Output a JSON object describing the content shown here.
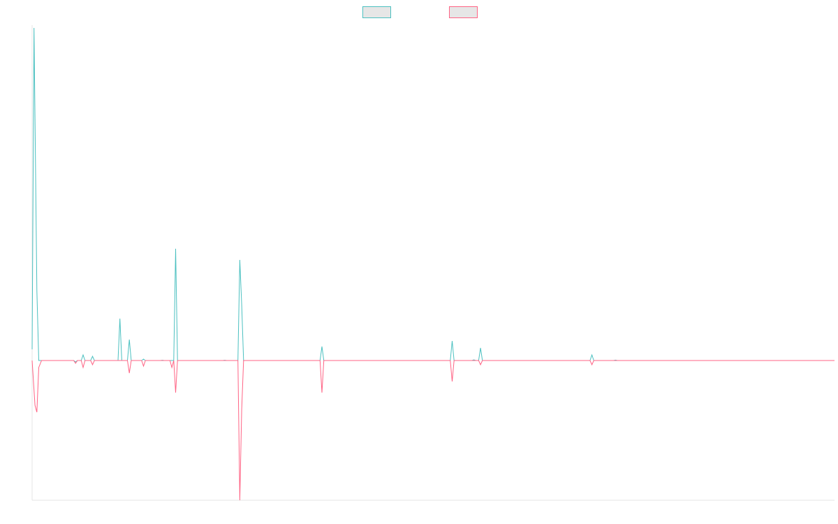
{
  "chart_data": {
    "type": "line",
    "title": "",
    "xlabel": "",
    "ylabel": "",
    "grid": false,
    "legend_position": "top",
    "x_range": [
      0,
      85
    ],
    "ylim": [
      -100,
      240
    ],
    "series": [
      {
        "name": "",
        "color": "#4bc0c0",
        "fill_color": "#e6e6e6",
        "points": [
          [
            0,
            8
          ],
          [
            0.2,
            238
          ],
          [
            0.5,
            50
          ],
          [
            0.7,
            0
          ],
          [
            1.5,
            0
          ],
          [
            4.4,
            0
          ],
          [
            4.6,
            -1
          ],
          [
            4.8,
            0
          ],
          [
            5.2,
            0
          ],
          [
            5.4,
            4
          ],
          [
            5.6,
            0
          ],
          [
            6.2,
            0
          ],
          [
            6.4,
            3
          ],
          [
            6.6,
            0
          ],
          [
            9.1,
            0
          ],
          [
            9.3,
            30
          ],
          [
            9.5,
            0
          ],
          [
            10.1,
            0
          ],
          [
            10.3,
            15
          ],
          [
            10.5,
            0
          ],
          [
            11.6,
            0
          ],
          [
            11.8,
            1
          ],
          [
            12.0,
            0
          ],
          [
            13.6,
            0
          ],
          [
            13.8,
            0.2
          ],
          [
            14.0,
            0
          ],
          [
            15.0,
            0
          ],
          [
            15.2,
            80
          ],
          [
            15.4,
            0
          ],
          [
            20.2,
            0
          ],
          [
            20.4,
            0.2
          ],
          [
            20.6,
            0
          ],
          [
            21.8,
            0
          ],
          [
            22.0,
            72
          ],
          [
            22.2,
            40
          ],
          [
            22.4,
            0
          ],
          [
            30.5,
            0
          ],
          [
            30.7,
            10
          ],
          [
            30.9,
            0
          ],
          [
            44.3,
            0
          ],
          [
            44.5,
            14
          ],
          [
            44.7,
            0
          ],
          [
            46.6,
            0
          ],
          [
            46.8,
            0.5
          ],
          [
            47.0,
            0
          ],
          [
            47.3,
            0
          ],
          [
            47.5,
            9
          ],
          [
            47.7,
            0
          ],
          [
            59.1,
            0
          ],
          [
            59.3,
            4
          ],
          [
            59.5,
            0
          ],
          [
            61.6,
            0
          ],
          [
            61.8,
            0.3
          ],
          [
            62.0,
            0
          ],
          [
            85,
            0
          ]
        ]
      },
      {
        "name": "",
        "color": "#ff6384",
        "fill_color": "#e6e6e6",
        "points": [
          [
            0,
            0
          ],
          [
            0.3,
            -32
          ],
          [
            0.5,
            -37
          ],
          [
            0.7,
            -5
          ],
          [
            1.0,
            0
          ],
          [
            4.4,
            0
          ],
          [
            4.6,
            -2
          ],
          [
            4.8,
            0
          ],
          [
            5.2,
            0
          ],
          [
            5.4,
            -5
          ],
          [
            5.6,
            0
          ],
          [
            6.2,
            0
          ],
          [
            6.4,
            -3
          ],
          [
            6.6,
            0
          ],
          [
            10.1,
            0
          ],
          [
            10.3,
            -9
          ],
          [
            10.5,
            0
          ],
          [
            11.6,
            0
          ],
          [
            11.8,
            -4
          ],
          [
            12.0,
            0
          ],
          [
            14.6,
            0
          ],
          [
            14.8,
            -5
          ],
          [
            15.0,
            0
          ],
          [
            15.2,
            -23
          ],
          [
            15.4,
            0
          ],
          [
            21.8,
            0
          ],
          [
            22.0,
            -100
          ],
          [
            22.2,
            -35
          ],
          [
            22.4,
            0
          ],
          [
            30.5,
            0
          ],
          [
            30.7,
            -23
          ],
          [
            30.9,
            0
          ],
          [
            44.3,
            0
          ],
          [
            44.5,
            -15
          ],
          [
            44.7,
            0
          ],
          [
            47.3,
            0
          ],
          [
            47.5,
            -3
          ],
          [
            47.7,
            0
          ],
          [
            59.1,
            0
          ],
          [
            59.3,
            -3
          ],
          [
            59.5,
            0
          ],
          [
            85,
            0
          ]
        ]
      }
    ]
  }
}
